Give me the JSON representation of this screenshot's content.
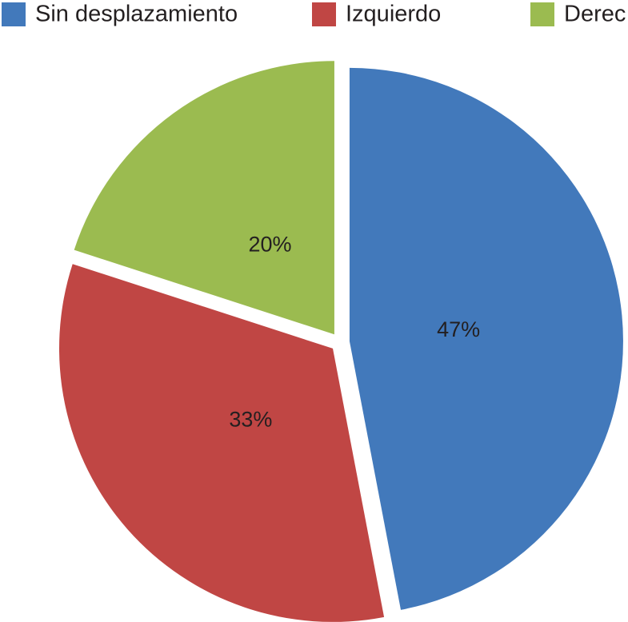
{
  "chart_data": {
    "type": "pie",
    "categories": [
      "Sin desplazamiento",
      "Izquierdo",
      "Derec"
    ],
    "values": [
      47,
      33,
      20
    ],
    "value_labels": [
      "47%",
      "33%",
      "20%"
    ],
    "colors": [
      "#4279bb",
      "#c04644",
      "#9bbb50"
    ]
  }
}
